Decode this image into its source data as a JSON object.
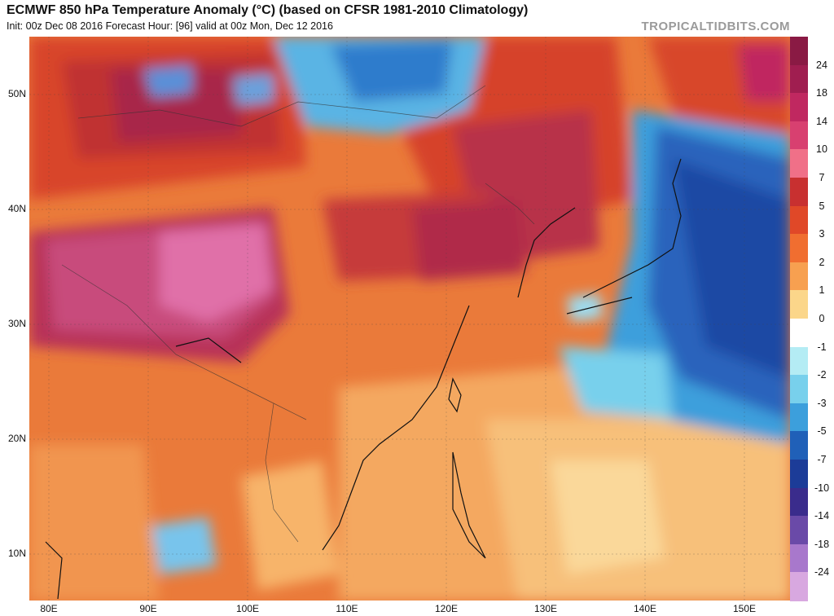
{
  "header": {
    "title": "ECMWF 850 hPa Temperature Anomaly (°C) (based on CFSR 1981-2010 Climatology)",
    "subtitle": "Init: 00z Dec 08 2016   Forecast Hour: [96]   valid at 00z Mon, Dec 12 2016",
    "brand": "TROPICALTIDBITS.COM"
  },
  "axes": {
    "lat": [
      "50N",
      "40N",
      "30N",
      "20N",
      "10N"
    ],
    "lon": [
      "80E",
      "90E",
      "100E",
      "110E",
      "120E",
      "130E",
      "140E",
      "150E"
    ]
  },
  "colorbar": {
    "labels": [
      "24",
      "18",
      "14",
      "10",
      "7",
      "5",
      "3",
      "2",
      "1",
      "0",
      "-1",
      "-2",
      "-3",
      "-5",
      "-7",
      "-10",
      "-14",
      "-18",
      "-24"
    ],
    "colors": [
      "#a01e50",
      "#c02860",
      "#d84070",
      "#f07088",
      "#c83030",
      "#e04828",
      "#f06e30",
      "#f7a050",
      "#fbd68a",
      "#ffffff",
      "#b4ecf4",
      "#78d0ec",
      "#3c9fdc",
      "#2060b8",
      "#1c3c98",
      "#3a2c8c",
      "#6a4aa8",
      "#a878cc",
      "#d8a8e0"
    ]
  }
}
